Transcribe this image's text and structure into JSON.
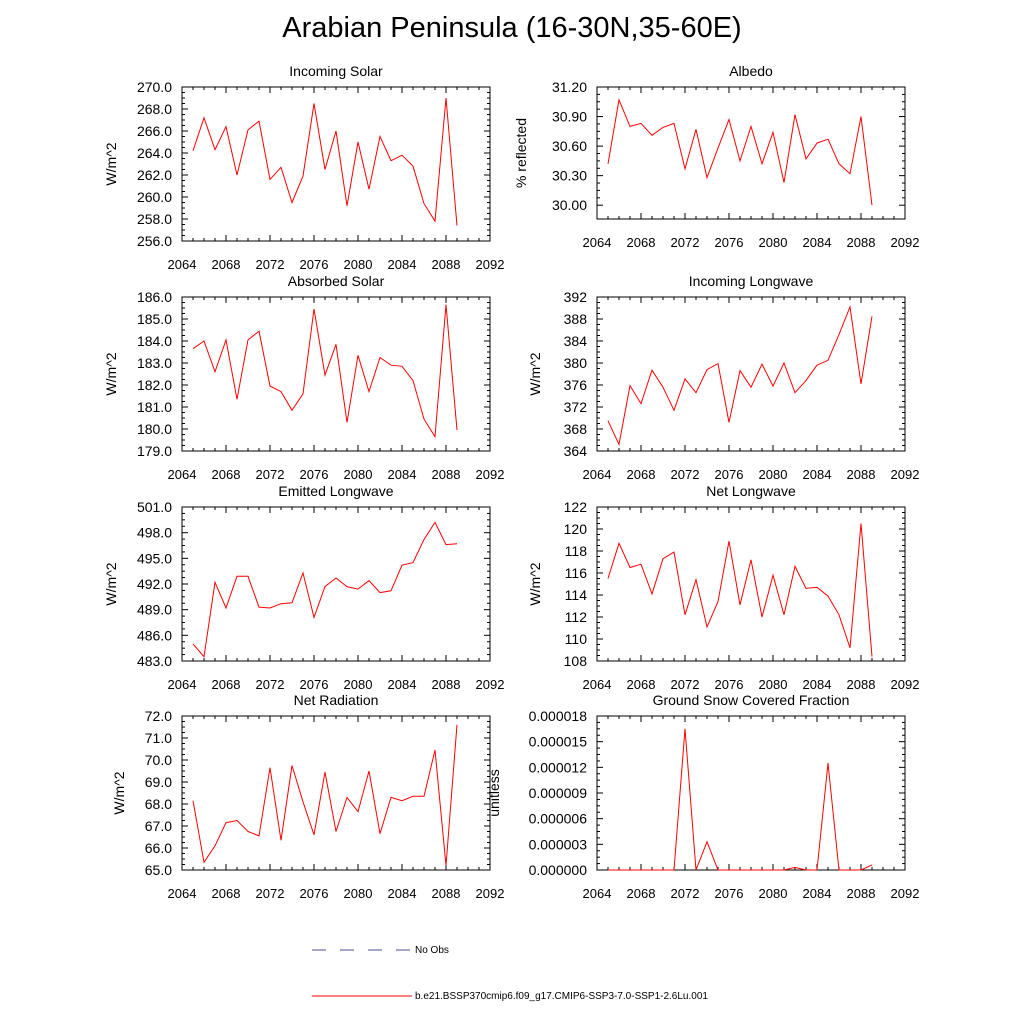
{
  "title": "Arabian Peninsula (16-30N,35-60E)",
  "colors": {
    "series": "#ff0000",
    "obs": "#4a4a9a",
    "axis": "#000000"
  },
  "legend": {
    "obs_label": "No Obs",
    "series_label": "b.e21.BSSP370cmip6.f09_g17.CMIP6-SSP3-7.0-SSP1-2.6Lu.001"
  },
  "chart_data": [
    {
      "type": "line",
      "title": "Incoming Solar",
      "ylabel": "W/m^2",
      "xlim": [
        2064,
        2092
      ],
      "xticks": [
        2064,
        2068,
        2072,
        2076,
        2080,
        2084,
        2088,
        2092
      ],
      "ylim": [
        256,
        270
      ],
      "yticks": [
        "256.0",
        "258.0",
        "260.0",
        "262.0",
        "264.0",
        "266.0",
        "268.0",
        "270.0"
      ],
      "x": [
        2065,
        2066,
        2067,
        2068,
        2069,
        2070,
        2071,
        2072,
        2073,
        2074,
        2075,
        2076,
        2077,
        2078,
        2079,
        2080,
        2081,
        2082,
        2083,
        2084,
        2085,
        2086,
        2087,
        2088,
        2089
      ],
      "values": [
        264.2,
        267.2,
        264.3,
        266.4,
        262.0,
        266.1,
        266.9,
        261.6,
        262.7,
        259.5,
        261.9,
        268.5,
        262.5,
        266.0,
        259.2,
        265.0,
        260.7,
        265.5,
        263.3,
        263.8,
        262.8,
        259.4,
        257.8,
        269.0,
        257.4
      ]
    },
    {
      "type": "line",
      "title": "Albedo",
      "ylabel": "% reflected",
      "xlim": [
        2064,
        2092
      ],
      "xticks": [
        2064,
        2068,
        2072,
        2076,
        2080,
        2084,
        2088,
        2092
      ],
      "ylim": [
        29.86,
        31.2
      ],
      "yticks": [
        "30.00",
        "30.30",
        "30.60",
        "30.90",
        "31.20"
      ],
      "x": [
        2065,
        2066,
        2067,
        2068,
        2069,
        2070,
        2071,
        2072,
        2073,
        2074,
        2075,
        2076,
        2077,
        2078,
        2079,
        2080,
        2081,
        2082,
        2083,
        2084,
        2085,
        2086,
        2087,
        2088,
        2089
      ],
      "values": [
        30.42,
        31.07,
        30.8,
        30.83,
        30.71,
        30.79,
        30.83,
        30.37,
        30.77,
        30.28,
        30.58,
        30.87,
        30.45,
        30.8,
        30.42,
        30.74,
        30.23,
        30.92,
        30.47,
        30.63,
        30.67,
        30.42,
        30.32,
        30.9,
        30.0
      ]
    },
    {
      "type": "line",
      "title": "Absorbed Solar",
      "ylabel": "W/m^2",
      "xlim": [
        2064,
        2092
      ],
      "xticks": [
        2064,
        2068,
        2072,
        2076,
        2080,
        2084,
        2088,
        2092
      ],
      "ylim": [
        179,
        186
      ],
      "yticks": [
        "179.0",
        "180.0",
        "181.0",
        "182.0",
        "183.0",
        "184.0",
        "185.0",
        "186.0"
      ],
      "x": [
        2065,
        2066,
        2067,
        2068,
        2069,
        2070,
        2071,
        2072,
        2073,
        2074,
        2075,
        2076,
        2077,
        2078,
        2079,
        2080,
        2081,
        2082,
        2083,
        2084,
        2085,
        2086,
        2087,
        2088,
        2089
      ],
      "values": [
        183.65,
        184.0,
        182.6,
        184.05,
        181.35,
        184.05,
        184.45,
        181.95,
        181.7,
        180.85,
        181.6,
        185.45,
        182.45,
        183.85,
        180.3,
        183.35,
        181.7,
        183.25,
        182.9,
        182.85,
        182.2,
        180.45,
        179.65,
        185.65,
        179.95
      ]
    },
    {
      "type": "line",
      "title": "Incoming Longwave",
      "ylabel": "W/m^2",
      "xlim": [
        2064,
        2092
      ],
      "xticks": [
        2064,
        2068,
        2072,
        2076,
        2080,
        2084,
        2088,
        2092
      ],
      "ylim": [
        364,
        392
      ],
      "yticks": [
        "364",
        "368",
        "372",
        "376",
        "380",
        "384",
        "388",
        "392"
      ],
      "x": [
        2065,
        2066,
        2067,
        2068,
        2069,
        2070,
        2071,
        2072,
        2073,
        2074,
        2075,
        2076,
        2077,
        2078,
        2079,
        2080,
        2081,
        2082,
        2083,
        2084,
        2085,
        2086,
        2087,
        2088,
        2089
      ],
      "values": [
        369.5,
        365.2,
        375.9,
        372.6,
        378.7,
        375.6,
        371.4,
        377.1,
        374.6,
        378.8,
        379.9,
        369.2,
        378.6,
        375.6,
        379.8,
        375.8,
        380.0,
        374.6,
        376.8,
        379.6,
        380.5,
        385.2,
        390.2,
        376.2,
        388.5
      ]
    },
    {
      "type": "line",
      "title": "Emitted Longwave",
      "ylabel": "W/m^2",
      "xlim": [
        2064,
        2092
      ],
      "xticks": [
        2064,
        2068,
        2072,
        2076,
        2080,
        2084,
        2088,
        2092
      ],
      "ylim": [
        483,
        501
      ],
      "yticks": [
        "483.0",
        "486.0",
        "489.0",
        "492.0",
        "495.0",
        "498.0",
        "501.0"
      ],
      "x": [
        2065,
        2066,
        2067,
        2068,
        2069,
        2070,
        2071,
        2072,
        2073,
        2074,
        2075,
        2076,
        2077,
        2078,
        2079,
        2080,
        2081,
        2082,
        2083,
        2084,
        2085,
        2086,
        2087,
        2088,
        2089
      ],
      "values": [
        485.0,
        483.5,
        492.2,
        489.2,
        492.9,
        492.9,
        489.3,
        489.2,
        489.7,
        489.8,
        493.3,
        488.1,
        491.7,
        492.7,
        491.7,
        491.4,
        492.4,
        491.0,
        491.2,
        494.2,
        494.5,
        497.2,
        499.2,
        496.6,
        496.7
      ]
    },
    {
      "type": "line",
      "title": "Net Longwave",
      "ylabel": "W/m^2",
      "xlim": [
        2064,
        2092
      ],
      "xticks": [
        2064,
        2068,
        2072,
        2076,
        2080,
        2084,
        2088,
        2092
      ],
      "ylim": [
        108,
        122
      ],
      "yticks": [
        "108",
        "110",
        "112",
        "114",
        "116",
        "118",
        "120",
        "122"
      ],
      "x": [
        2065,
        2066,
        2067,
        2068,
        2069,
        2070,
        2071,
        2072,
        2073,
        2074,
        2075,
        2076,
        2077,
        2078,
        2079,
        2080,
        2081,
        2082,
        2083,
        2084,
        2085,
        2086,
        2087,
        2088,
        2089
      ],
      "values": [
        115.5,
        118.7,
        116.5,
        116.8,
        114.1,
        117.3,
        117.9,
        112.2,
        115.4,
        111.1,
        113.4,
        118.9,
        113.1,
        117.2,
        112.0,
        115.8,
        112.2,
        116.6,
        114.6,
        114.7,
        113.9,
        112.2,
        109.2,
        120.5,
        108.4
      ]
    },
    {
      "type": "line",
      "title": "Net Radiation",
      "ylabel": "W/m^2",
      "xlim": [
        2064,
        2092
      ],
      "xticks": [
        2064,
        2068,
        2072,
        2076,
        2080,
        2084,
        2088,
        2092
      ],
      "ylim": [
        65,
        72
      ],
      "yticks": [
        "65.0",
        "66.0",
        "67.0",
        "68.0",
        "69.0",
        "70.0",
        "71.0",
        "72.0"
      ],
      "x": [
        2065,
        2066,
        2067,
        2068,
        2069,
        2070,
        2071,
        2072,
        2073,
        2074,
        2075,
        2076,
        2077,
        2078,
        2079,
        2080,
        2081,
        2082,
        2083,
        2084,
        2085,
        2086,
        2087,
        2088,
        2089
      ],
      "values": [
        68.15,
        65.35,
        66.1,
        67.15,
        67.25,
        66.75,
        66.55,
        69.65,
        66.35,
        69.75,
        68.1,
        66.6,
        69.45,
        66.75,
        68.3,
        67.65,
        69.5,
        66.65,
        68.3,
        68.15,
        68.35,
        68.35,
        70.45,
        65.2,
        71.6
      ]
    },
    {
      "type": "line",
      "title": "Ground Snow Covered Fraction",
      "ylabel": "unitless",
      "xlim": [
        2064,
        2092
      ],
      "xticks": [
        2064,
        2068,
        2072,
        2076,
        2080,
        2084,
        2088,
        2092
      ],
      "ylim": [
        0,
        1.8e-05
      ],
      "yticks": [
        "0.000000",
        "0.000003",
        "0.000006",
        "0.000009",
        "0.000012",
        "0.000015",
        "0.000018"
      ],
      "x": [
        2065,
        2066,
        2067,
        2068,
        2069,
        2070,
        2071,
        2072,
        2073,
        2074,
        2075,
        2076,
        2077,
        2078,
        2079,
        2080,
        2081,
        2082,
        2083,
        2084,
        2085,
        2086,
        2087,
        2088,
        2089
      ],
      "values": [
        0,
        0,
        0,
        0,
        0,
        0,
        0,
        1.65e-05,
        0,
        3.3e-06,
        0,
        0,
        0,
        0,
        0,
        0,
        0,
        3e-07,
        0,
        0,
        1.25e-05,
        0,
        0,
        0,
        6e-07
      ]
    }
  ]
}
